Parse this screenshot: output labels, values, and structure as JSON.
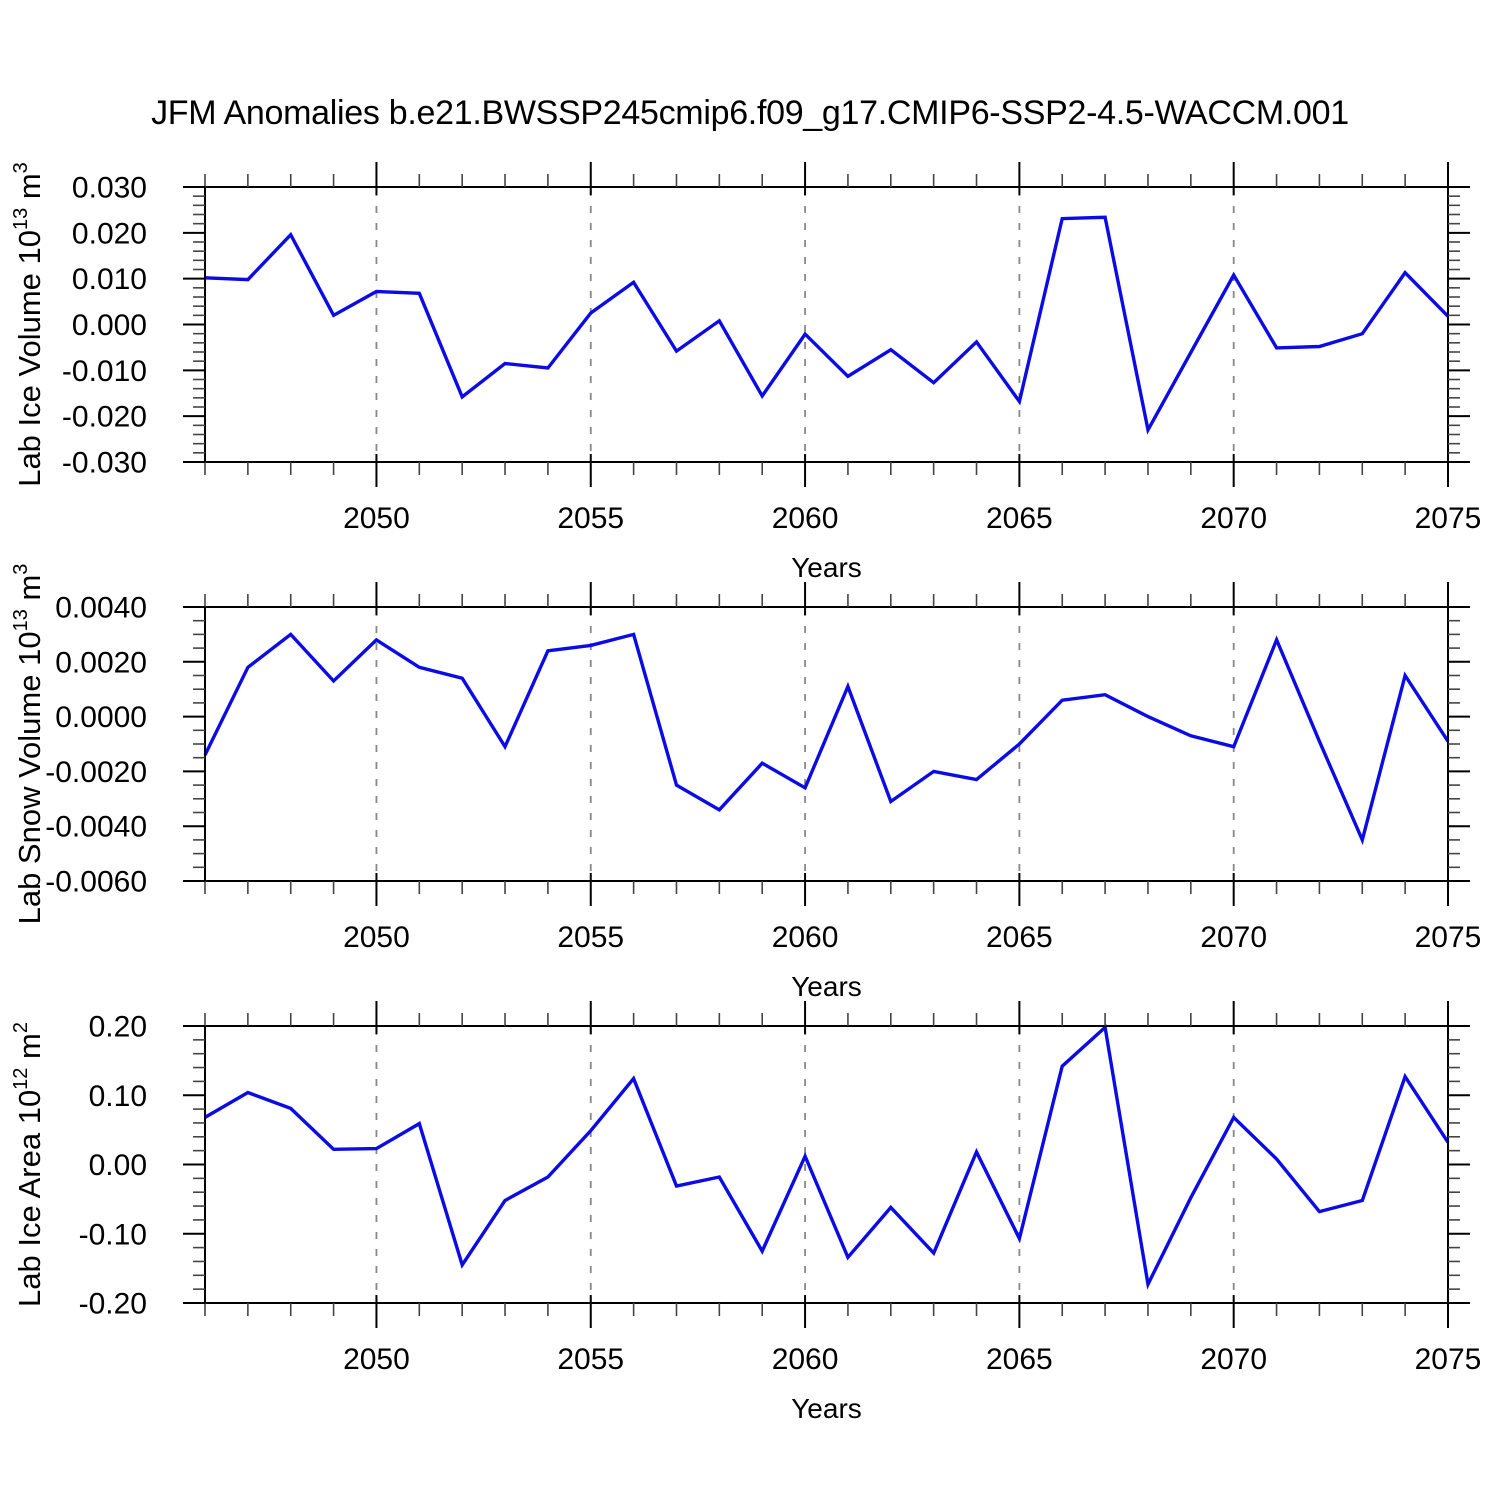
{
  "title": "JFM Anomalies b.e21.BWSSP245cmip6.f09_g17.CMIP6-SSP2-4.5-WACCM.001",
  "style": {
    "line_color": "#0b0be6",
    "grid_color": "#888888",
    "axis_color": "#000000",
    "minor_tick_color": "#444444"
  },
  "chart_data": [
    {
      "type": "line",
      "ylabel": "Lab Ice Volume 10^13 m^3",
      "ylabel_parts": [
        {
          "text": "Lab Ice Volume 10"
        },
        {
          "text": "13",
          "sup": true
        },
        {
          "text": " m"
        },
        {
          "text": "3",
          "sup": true
        }
      ],
      "xlabel": "Years",
      "xlim": [
        2046,
        2075
      ],
      "ylim": [
        -0.03,
        0.03
      ],
      "xticks": [
        2050,
        2055,
        2060,
        2065,
        2070,
        2075
      ],
      "x_minor_step": 1,
      "yticks": [
        0.03,
        0.02,
        0.01,
        0.0,
        -0.01,
        -0.02,
        -0.03
      ],
      "ytick_labels": [
        "0.030",
        "0.020",
        "0.010",
        "0.000",
        "-0.010",
        "-0.020",
        "-0.030"
      ],
      "y_minor_step": 0.002,
      "grid": "vertical-dashed",
      "legend": "none",
      "x": [
        2046,
        2047,
        2048,
        2049,
        2050,
        2051,
        2052,
        2053,
        2054,
        2055,
        2056,
        2057,
        2058,
        2059,
        2060,
        2061,
        2062,
        2063,
        2064,
        2065,
        2066,
        2067,
        2068,
        2069,
        2070,
        2071,
        2072,
        2073,
        2074,
        2075
      ],
      "values": [
        0.0102,
        0.0098,
        0.0196,
        0.002,
        0.0072,
        0.0068,
        -0.0158,
        -0.0085,
        -0.0095,
        0.0025,
        0.0092,
        -0.0058,
        0.0008,
        -0.0156,
        -0.0021,
        -0.0113,
        -0.0055,
        -0.0127,
        -0.0038,
        -0.0168,
        0.0231,
        0.0234,
        -0.023,
        -0.0061,
        0.0108,
        -0.0051,
        -0.0048,
        -0.002,
        0.0113,
        0.0018
      ]
    },
    {
      "type": "line",
      "ylabel": "Lab Snow Volume 10^13 m^3",
      "ylabel_parts": [
        {
          "text": "Lab Snow Volume 10"
        },
        {
          "text": "13",
          "sup": true
        },
        {
          "text": " m"
        },
        {
          "text": "3",
          "sup": true
        }
      ],
      "xlabel": "Years",
      "xlim": [
        2046,
        2075
      ],
      "ylim": [
        -0.006,
        0.004
      ],
      "xticks": [
        2050,
        2055,
        2060,
        2065,
        2070,
        2075
      ],
      "x_minor_step": 1,
      "yticks": [
        0.004,
        0.002,
        0.0,
        -0.002,
        -0.004,
        -0.006
      ],
      "ytick_labels": [
        "0.0040",
        "0.0020",
        "0.0000",
        "-0.0020",
        "-0.0040",
        "-0.0060"
      ],
      "y_minor_step": 0.0005,
      "grid": "vertical-dashed",
      "legend": "none",
      "x": [
        2046,
        2047,
        2048,
        2049,
        2050,
        2051,
        2052,
        2053,
        2054,
        2055,
        2056,
        2057,
        2058,
        2059,
        2060,
        2061,
        2062,
        2063,
        2064,
        2065,
        2066,
        2067,
        2068,
        2069,
        2070,
        2071,
        2072,
        2073,
        2074,
        2075
      ],
      "values": [
        -0.0014,
        0.0018,
        0.003,
        0.0013,
        0.0028,
        0.0018,
        0.0014,
        -0.0011,
        0.0024,
        0.0026,
        0.003,
        -0.0025,
        -0.0034,
        -0.0017,
        -0.0026,
        0.0011,
        -0.0031,
        -0.002,
        -0.0023,
        -0.001,
        0.0006,
        0.0008,
        0.0,
        -0.0007,
        -0.0011,
        0.0028,
        -0.0009,
        -0.0045,
        0.0015,
        -0.0009
      ]
    },
    {
      "type": "line",
      "ylabel": "Lab Ice Area 10^12 m^2",
      "ylabel_parts": [
        {
          "text": "Lab Ice Area 10"
        },
        {
          "text": "12",
          "sup": true
        },
        {
          "text": " m"
        },
        {
          "text": "2",
          "sup": true
        }
      ],
      "xlabel": "Years",
      "xlim": [
        2046,
        2075
      ],
      "ylim": [
        -0.2,
        0.2
      ],
      "xticks": [
        2050,
        2055,
        2060,
        2065,
        2070,
        2075
      ],
      "x_minor_step": 1,
      "yticks": [
        0.2,
        0.1,
        0.0,
        -0.1,
        -0.2
      ],
      "ytick_labels": [
        "0.20",
        "0.10",
        "0.00",
        "-0.10",
        "-0.20"
      ],
      "y_minor_step": 0.02,
      "grid": "vertical-dashed",
      "legend": "none",
      "x": [
        2046,
        2047,
        2048,
        2049,
        2050,
        2051,
        2052,
        2053,
        2054,
        2055,
        2056,
        2057,
        2058,
        2059,
        2060,
        2061,
        2062,
        2063,
        2064,
        2065,
        2066,
        2067,
        2068,
        2069,
        2070,
        2071,
        2072,
        2073,
        2074,
        2075
      ],
      "values": [
        0.068,
        0.104,
        0.081,
        0.022,
        0.023,
        0.059,
        -0.145,
        -0.052,
        -0.018,
        0.049,
        0.124,
        -0.031,
        -0.018,
        -0.125,
        0.012,
        -0.134,
        -0.062,
        -0.128,
        0.018,
        -0.107,
        0.142,
        0.198,
        -0.173,
        -0.048,
        0.068,
        0.008,
        -0.068,
        -0.052,
        0.127,
        0.032
      ]
    }
  ]
}
